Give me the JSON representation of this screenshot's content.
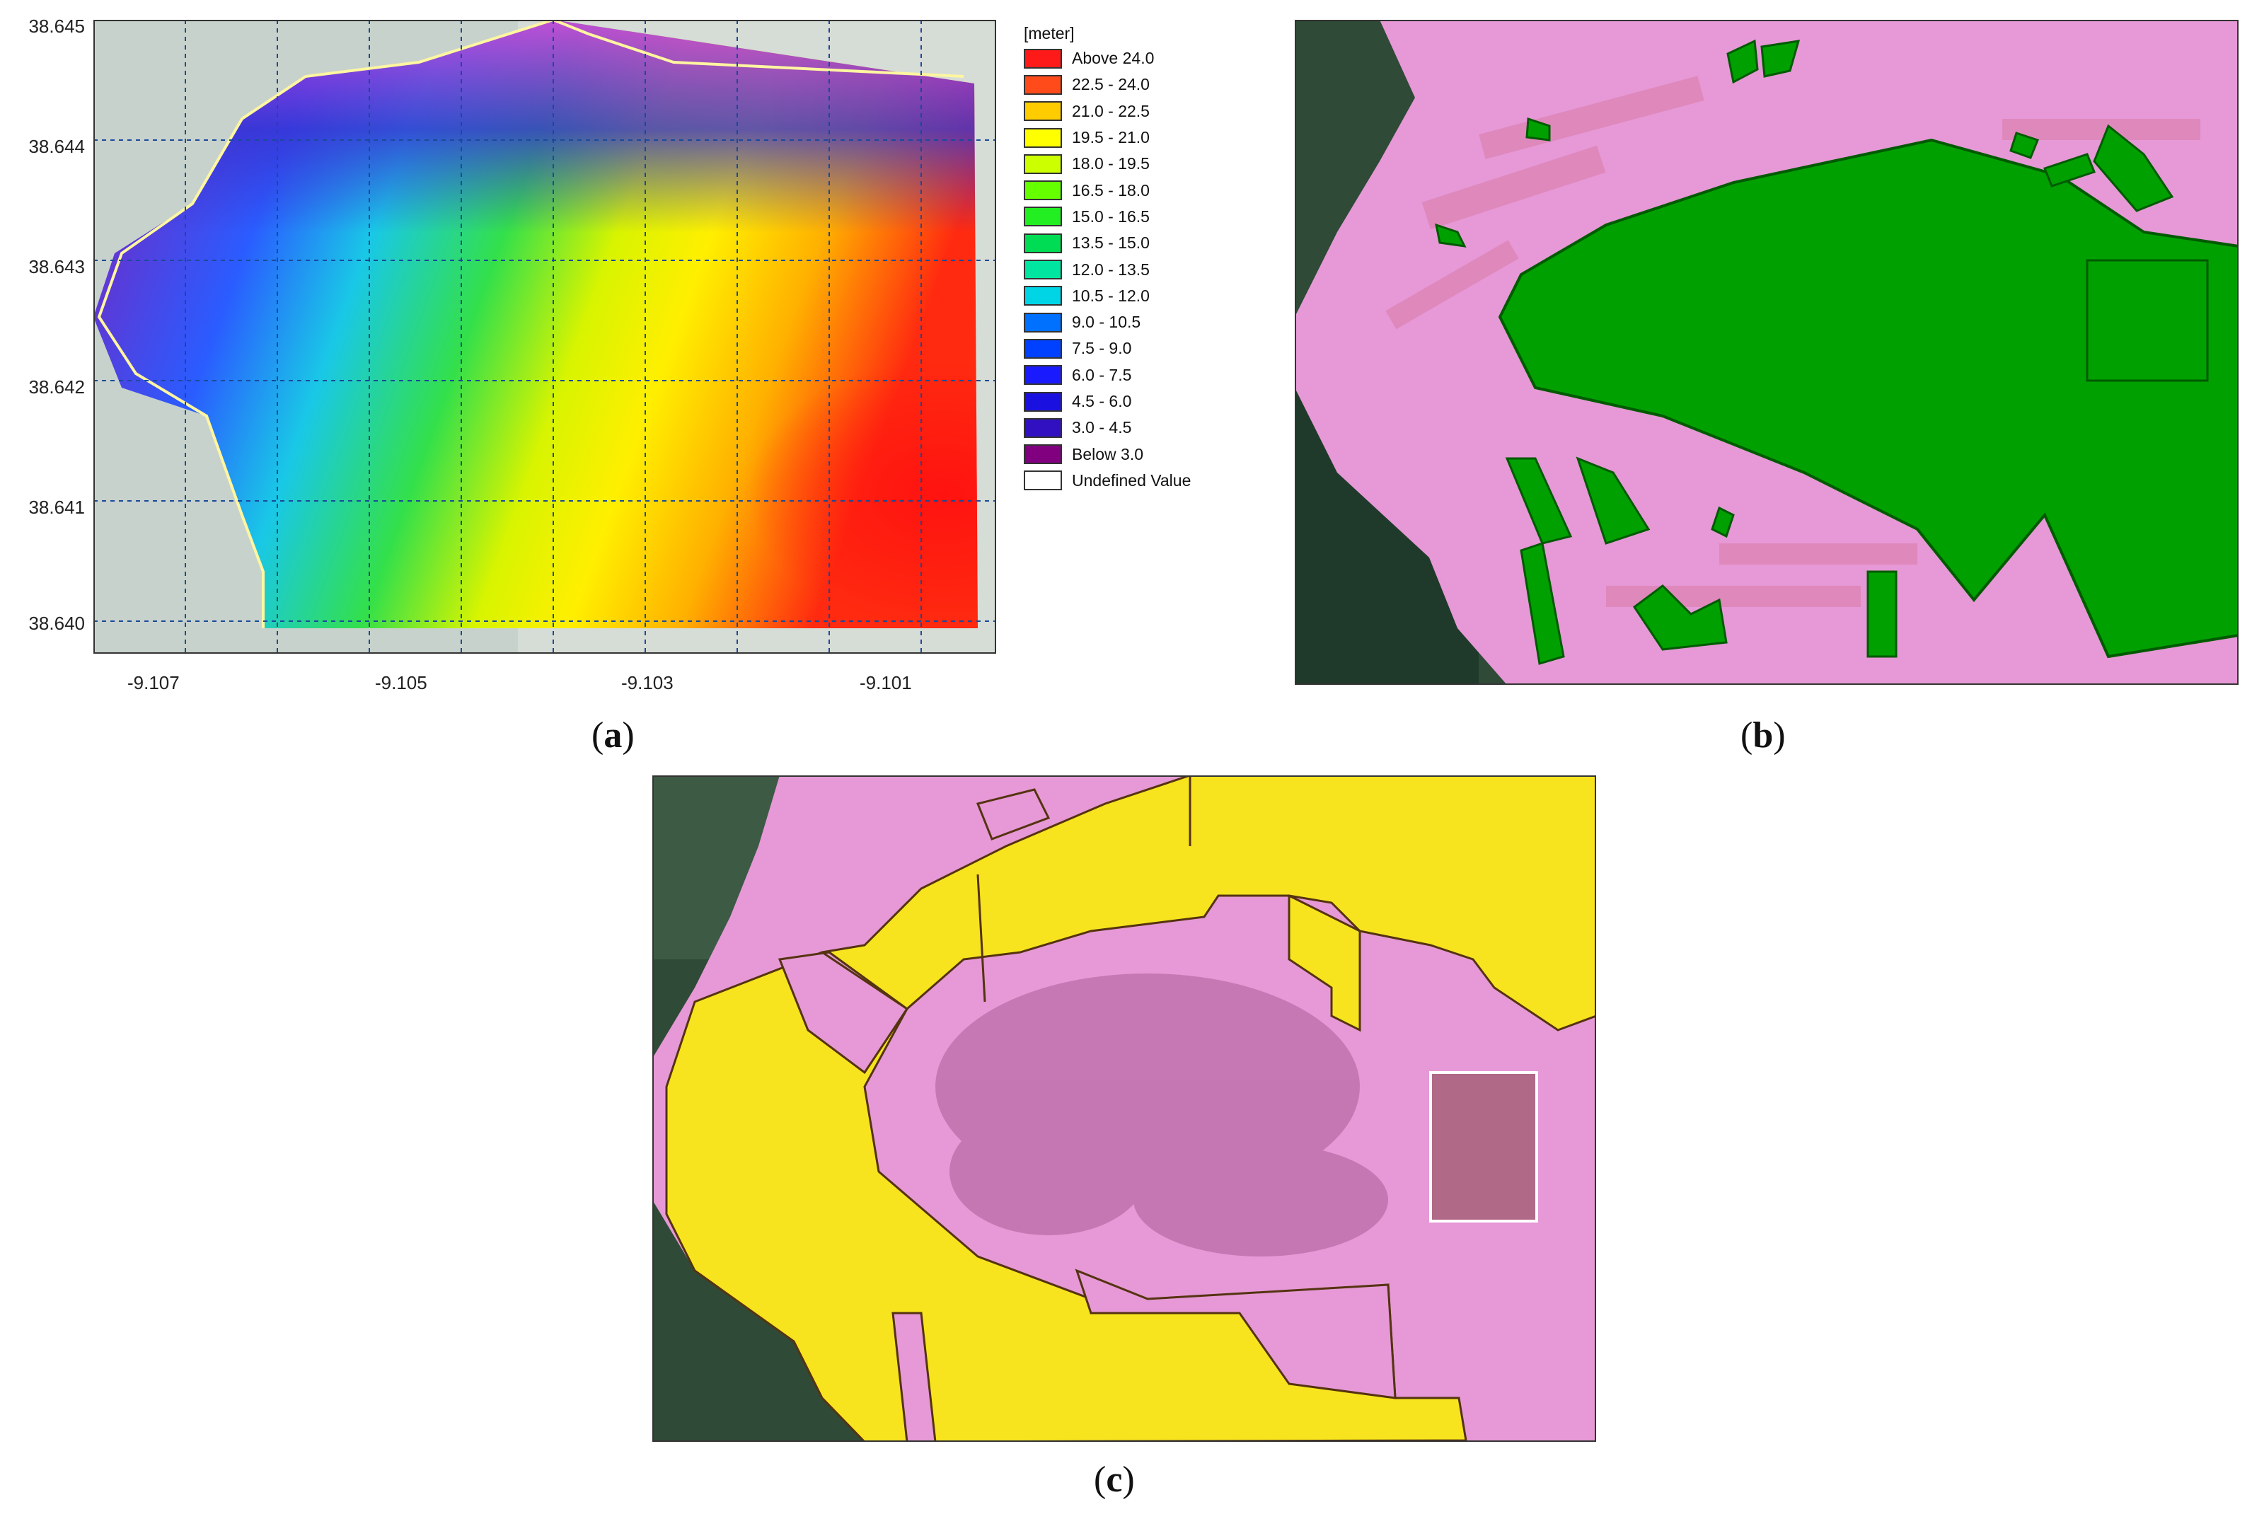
{
  "panel_a": {
    "caption_open": "(",
    "caption_letter": "a",
    "caption_close": ")",
    "legend_unit": "[meter]",
    "legend": [
      {
        "label": "Above 24.0",
        "color": "#ff1a1a"
      },
      {
        "label": "22.5 - 24.0",
        "color": "#ff4a1a"
      },
      {
        "label": "21.0 - 22.5",
        "color": "#ffcc00"
      },
      {
        "label": "19.5 - 21.0",
        "color": "#ffff00"
      },
      {
        "label": "18.0 - 19.5",
        "color": "#ccff00"
      },
      {
        "label": "16.5 - 18.0",
        "color": "#66ff00"
      },
      {
        "label": "15.0 - 16.5",
        "color": "#22ee22"
      },
      {
        "label": "13.5 - 15.0",
        "color": "#00dd55"
      },
      {
        "label": "12.0 - 13.5",
        "color": "#00e6a0"
      },
      {
        "label": "10.5 - 12.0",
        "color": "#00d5e6"
      },
      {
        "label": "9.0 - 10.5",
        "color": "#0070ff"
      },
      {
        "label": "7.5 - 9.0",
        "color": "#0040ff"
      },
      {
        "label": "6.0 - 7.5",
        "color": "#1a1aff"
      },
      {
        "label": "4.5 - 6.0",
        "color": "#1a10e0"
      },
      {
        "label": "3.0 - 4.5",
        "color": "#3010c0"
      },
      {
        "label": "Below 3.0",
        "color": "#800080"
      },
      {
        "label": "Undefined Value",
        "color": "#ffffff"
      }
    ],
    "y_ticks": [
      "38.645",
      "38.644",
      "38.643",
      "38.642",
      "38.641",
      "38.640"
    ],
    "x_ticks": [
      "-9.107",
      "-9.105",
      "-9.103",
      "-9.101"
    ]
  },
  "panel_b": {
    "caption_open": "(",
    "caption_letter": "b",
    "caption_close": ")"
  },
  "panel_c": {
    "caption_open": "(",
    "caption_letter": "c",
    "caption_close": ")"
  },
  "colors": {
    "pink": "#e699d6",
    "green": "#00a000",
    "yellow": "#f7e41f",
    "water": "#2f4a36"
  }
}
